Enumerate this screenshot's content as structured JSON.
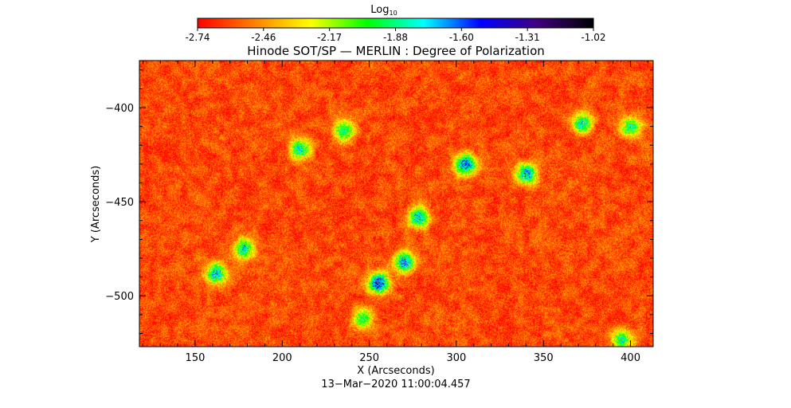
{
  "colorbar": {
    "label_base": "Log",
    "label_sub": "10",
    "ticks": [
      "-2.74",
      "-2.46",
      "-2.17",
      "-1.88",
      "-1.60",
      "-1.31",
      "-1.02"
    ],
    "range": [
      -2.74,
      -1.02
    ],
    "colors": [
      "#ff0000",
      "#ff8000",
      "#ffff00",
      "#00ff00",
      "#00ffff",
      "#0000ff",
      "#400080",
      "#000000"
    ]
  },
  "chart_data": {
    "type": "heatmap",
    "title": "Hinode SOT/SP — MERLIN : Degree of Polarization",
    "xlabel": "X (Arcseconds)",
    "ylabel": "Y (Arcseconds)",
    "xlim": [
      118,
      413
    ],
    "ylim": [
      -527,
      -375
    ],
    "x_ticks": [
      150,
      200,
      250,
      300,
      350,
      400
    ],
    "x_tick_labels": [
      "150",
      "200",
      "250",
      "300",
      "350",
      "400"
    ],
    "y_ticks": [
      -400,
      -450,
      -500
    ],
    "y_tick_labels": [
      "−400",
      "−450",
      "−500"
    ],
    "colorscale": "rainbow (red → black)",
    "value_range": [
      -2.74,
      -1.02
    ],
    "background_level": -2.6,
    "features": [
      {
        "x": 305,
        "y": -430,
        "peak": -1.4
      },
      {
        "x": 340,
        "y": -435,
        "peak": -1.5
      },
      {
        "x": 255,
        "y": -493,
        "peak": -1.3
      },
      {
        "x": 270,
        "y": -482,
        "peak": -1.5
      },
      {
        "x": 278,
        "y": -458,
        "peak": -1.6
      },
      {
        "x": 162,
        "y": -488,
        "peak": -1.6
      },
      {
        "x": 178,
        "y": -475,
        "peak": -1.7
      },
      {
        "x": 210,
        "y": -422,
        "peak": -1.7
      },
      {
        "x": 372,
        "y": -408,
        "peak": -1.7
      },
      {
        "x": 400,
        "y": -410,
        "peak": -1.8
      },
      {
        "x": 395,
        "y": -523,
        "peak": -1.8
      },
      {
        "x": 235,
        "y": -412,
        "peak": -1.8
      },
      {
        "x": 246,
        "y": -512,
        "peak": -1.9
      }
    ],
    "date": "13−Mar−2020 11:00:04.457"
  }
}
